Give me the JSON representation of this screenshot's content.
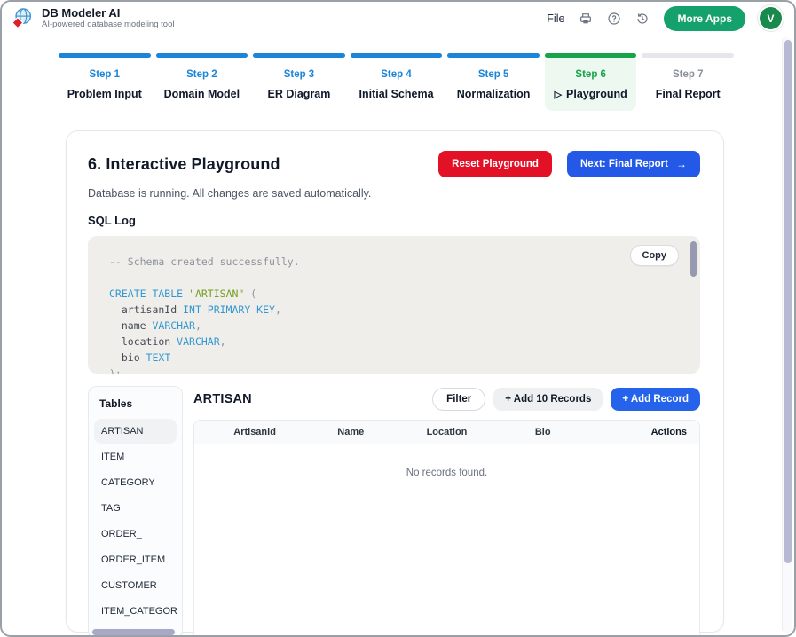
{
  "header": {
    "app_title": "DB Modeler AI",
    "app_subtitle": "AI-powered database modeling tool",
    "menu_file": "File",
    "more_apps_label": "More Apps",
    "avatar_initial": "V",
    "icon_names": [
      "printer-icon",
      "help-icon",
      "history-icon"
    ]
  },
  "colors": {
    "step_blue": "#1a85d9",
    "step_green": "#16a34a",
    "button_red": "#e31126",
    "button_blue": "#2458e6",
    "more_apps_green": "#14a16c"
  },
  "steps": {
    "items": [
      {
        "label": "Step 1",
        "name": "Problem Input",
        "state": "done"
      },
      {
        "label": "Step 2",
        "name": "Domain Model",
        "state": "done"
      },
      {
        "label": "Step 3",
        "name": "ER Diagram",
        "state": "done"
      },
      {
        "label": "Step 4",
        "name": "Initial Schema",
        "state": "done"
      },
      {
        "label": "Step 5",
        "name": "Normalization",
        "state": "done"
      },
      {
        "label": "Step 6",
        "name": "Playground",
        "state": "active",
        "icon": "play"
      },
      {
        "label": "Step 7",
        "name": "Final Report",
        "state": "todo"
      }
    ]
  },
  "playground": {
    "title": "6. Interactive Playground",
    "status_text": "Database is running. All changes are saved automatically.",
    "reset_button": "Reset Playground",
    "next_button": "Next: Final Report",
    "next_button_arrow": "→",
    "sql_log_title": "SQL Log",
    "copy_button": "Copy"
  },
  "sql": {
    "lines": [
      [
        {
          "text": "-- Schema created successfully.",
          "type": "comment"
        }
      ],
      [],
      [
        {
          "text": "CREATE TABLE",
          "type": "keyword"
        },
        {
          "text": " ",
          "type": "plain"
        },
        {
          "text": "\"ARTISAN\"",
          "type": "string"
        },
        {
          "text": " (",
          "type": "punct"
        }
      ],
      [
        {
          "text": "  artisanId ",
          "type": "ident"
        },
        {
          "text": "INT PRIMARY KEY",
          "type": "keyword"
        },
        {
          "text": ",",
          "type": "punct"
        }
      ],
      [
        {
          "text": "  name ",
          "type": "ident"
        },
        {
          "text": "VARCHAR",
          "type": "keyword"
        },
        {
          "text": ",",
          "type": "punct"
        }
      ],
      [
        {
          "text": "  location ",
          "type": "ident"
        },
        {
          "text": "VARCHAR",
          "type": "keyword"
        },
        {
          "text": ",",
          "type": "punct"
        }
      ],
      [
        {
          "text": "  bio ",
          "type": "ident"
        },
        {
          "text": "TEXT",
          "type": "keyword"
        }
      ],
      [
        {
          "text": ");",
          "type": "punct"
        }
      ]
    ]
  },
  "tables_panel": {
    "title": "Tables",
    "items": [
      {
        "label": "ARTISAN",
        "state": "selected"
      },
      {
        "label": "ITEM",
        "state": "normal"
      },
      {
        "label": "CATEGORY",
        "state": "normal"
      },
      {
        "label": "TAG",
        "state": "normal"
      },
      {
        "label": "ORDER_",
        "state": "normal"
      },
      {
        "label": "ORDER_ITEM",
        "state": "normal"
      },
      {
        "label": "CUSTOMER",
        "state": "normal"
      },
      {
        "label": "ITEM_CATEGORY",
        "state": "normal"
      }
    ]
  },
  "records_panel": {
    "table_name": "ARTISAN",
    "filter_button": "Filter",
    "add10_button": "+ Add 10 Records",
    "add_button": "+ Add Record",
    "columns": [
      "Artisanid",
      "Name",
      "Location",
      "Bio",
      "Actions"
    ],
    "empty_text": "No records found."
  }
}
